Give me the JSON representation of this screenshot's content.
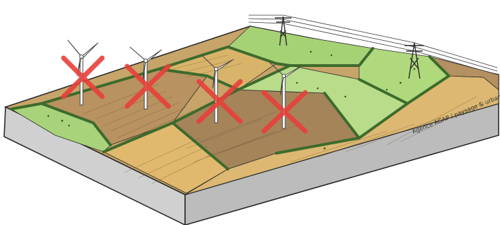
{
  "credit": "Agence AGAP / paysage & urbanisme",
  "colors": {
    "outline": "#2a2a2a",
    "block_side": "#d2d2d2",
    "block_front": "#bcbcbc",
    "field_green": "#a9d37a",
    "field_green_light": "#c3e08f",
    "field_tan": "#d9b268",
    "field_brown": "#b18d5c",
    "field_dark": "#9c7b52",
    "hedge": "#3d6b2c",
    "cross": "#e8403b"
  },
  "icons": [
    "wind-turbine-icon",
    "pylon-icon",
    "cross-icon"
  ],
  "wind_turbines": [
    {
      "label": "wind-turbine-1",
      "status": "crossed-out"
    },
    {
      "label": "wind-turbine-2",
      "status": "crossed-out"
    },
    {
      "label": "wind-turbine-3",
      "status": "crossed-out"
    },
    {
      "label": "wind-turbine-4",
      "status": "crossed-out"
    }
  ],
  "pylons": [
    {
      "label": "pylon-1"
    },
    {
      "label": "pylon-2"
    }
  ]
}
